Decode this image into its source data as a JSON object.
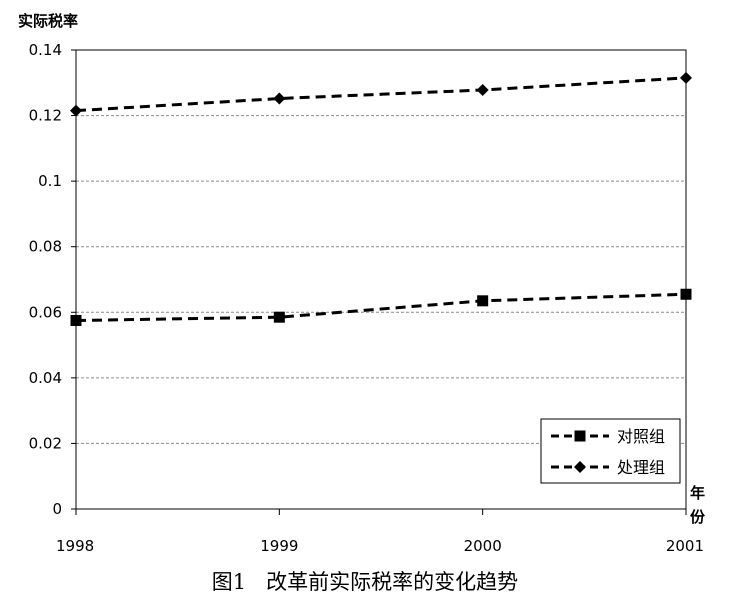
{
  "chart_data": {
    "type": "line",
    "ylabel": "实际税率",
    "xlabel_line1": "年",
    "xlabel_line2": "份",
    "caption": "图1   改革前实际税率的变化趋势",
    "categories": [
      "1998",
      "1999",
      "2000",
      "2001"
    ],
    "ylim": [
      0,
      0.14
    ],
    "yticks": [
      "0",
      "0.02",
      "0.04",
      "0.06",
      "0.08",
      "0.1",
      "0.12",
      "0.14"
    ],
    "grid": true,
    "legend_placement": "bottom-right",
    "series": [
      {
        "name": "对照组",
        "marker": "square",
        "values": [
          0.0575,
          0.0585,
          0.0635,
          0.0655
        ],
        "color": "#000000"
      },
      {
        "name": "处理组",
        "marker": "diamond",
        "values": [
          0.1215,
          0.1252,
          0.1278,
          0.1315
        ],
        "color": "#000000"
      }
    ]
  }
}
